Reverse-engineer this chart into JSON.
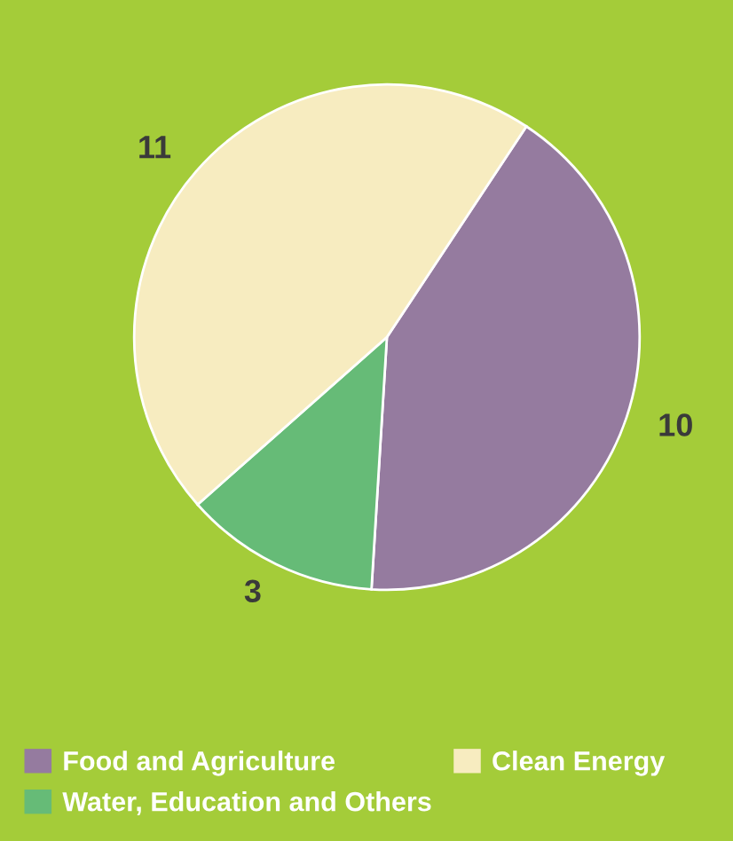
{
  "chart_data": {
    "type": "pie",
    "categories": [
      "Food and Agriculture",
      "Water, Education and Others",
      "Clean Energy"
    ],
    "values": [
      10,
      3,
      11
    ],
    "colors": [
      "#957b9f",
      "#66bb77",
      "#f7ecc0"
    ],
    "data_labels": true,
    "legend": "bottom"
  }
}
